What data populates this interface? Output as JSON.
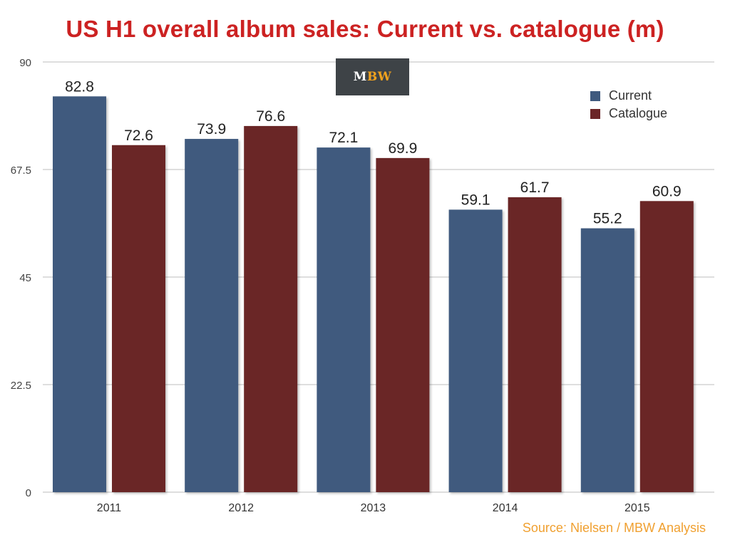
{
  "title": "US H1 overall album sales: Current vs. catalogue (m)",
  "logo": {
    "left": "M",
    "right": "BW"
  },
  "source": "Source: Nielsen / MBW Analysis",
  "colors": {
    "current": "#3f5a7e",
    "catalogue": "#6b2527",
    "title": "#cc2222",
    "source": "#f0a030"
  },
  "chart_data": {
    "type": "bar",
    "title": "US H1 overall album sales: Current vs. catalogue (m)",
    "categories": [
      "2011",
      "2012",
      "2013",
      "2014",
      "2015"
    ],
    "series": [
      {
        "name": "Current",
        "values": [
          82.8,
          73.9,
          72.1,
          59.1,
          55.2
        ]
      },
      {
        "name": "Catalogue",
        "values": [
          72.6,
          76.6,
          69.9,
          61.7,
          60.9
        ]
      }
    ],
    "ylim": [
      0,
      90
    ],
    "yticks": [
      "0",
      "22.5",
      "45",
      "67.5",
      "90"
    ],
    "grid": true,
    "legend": "top-right"
  }
}
